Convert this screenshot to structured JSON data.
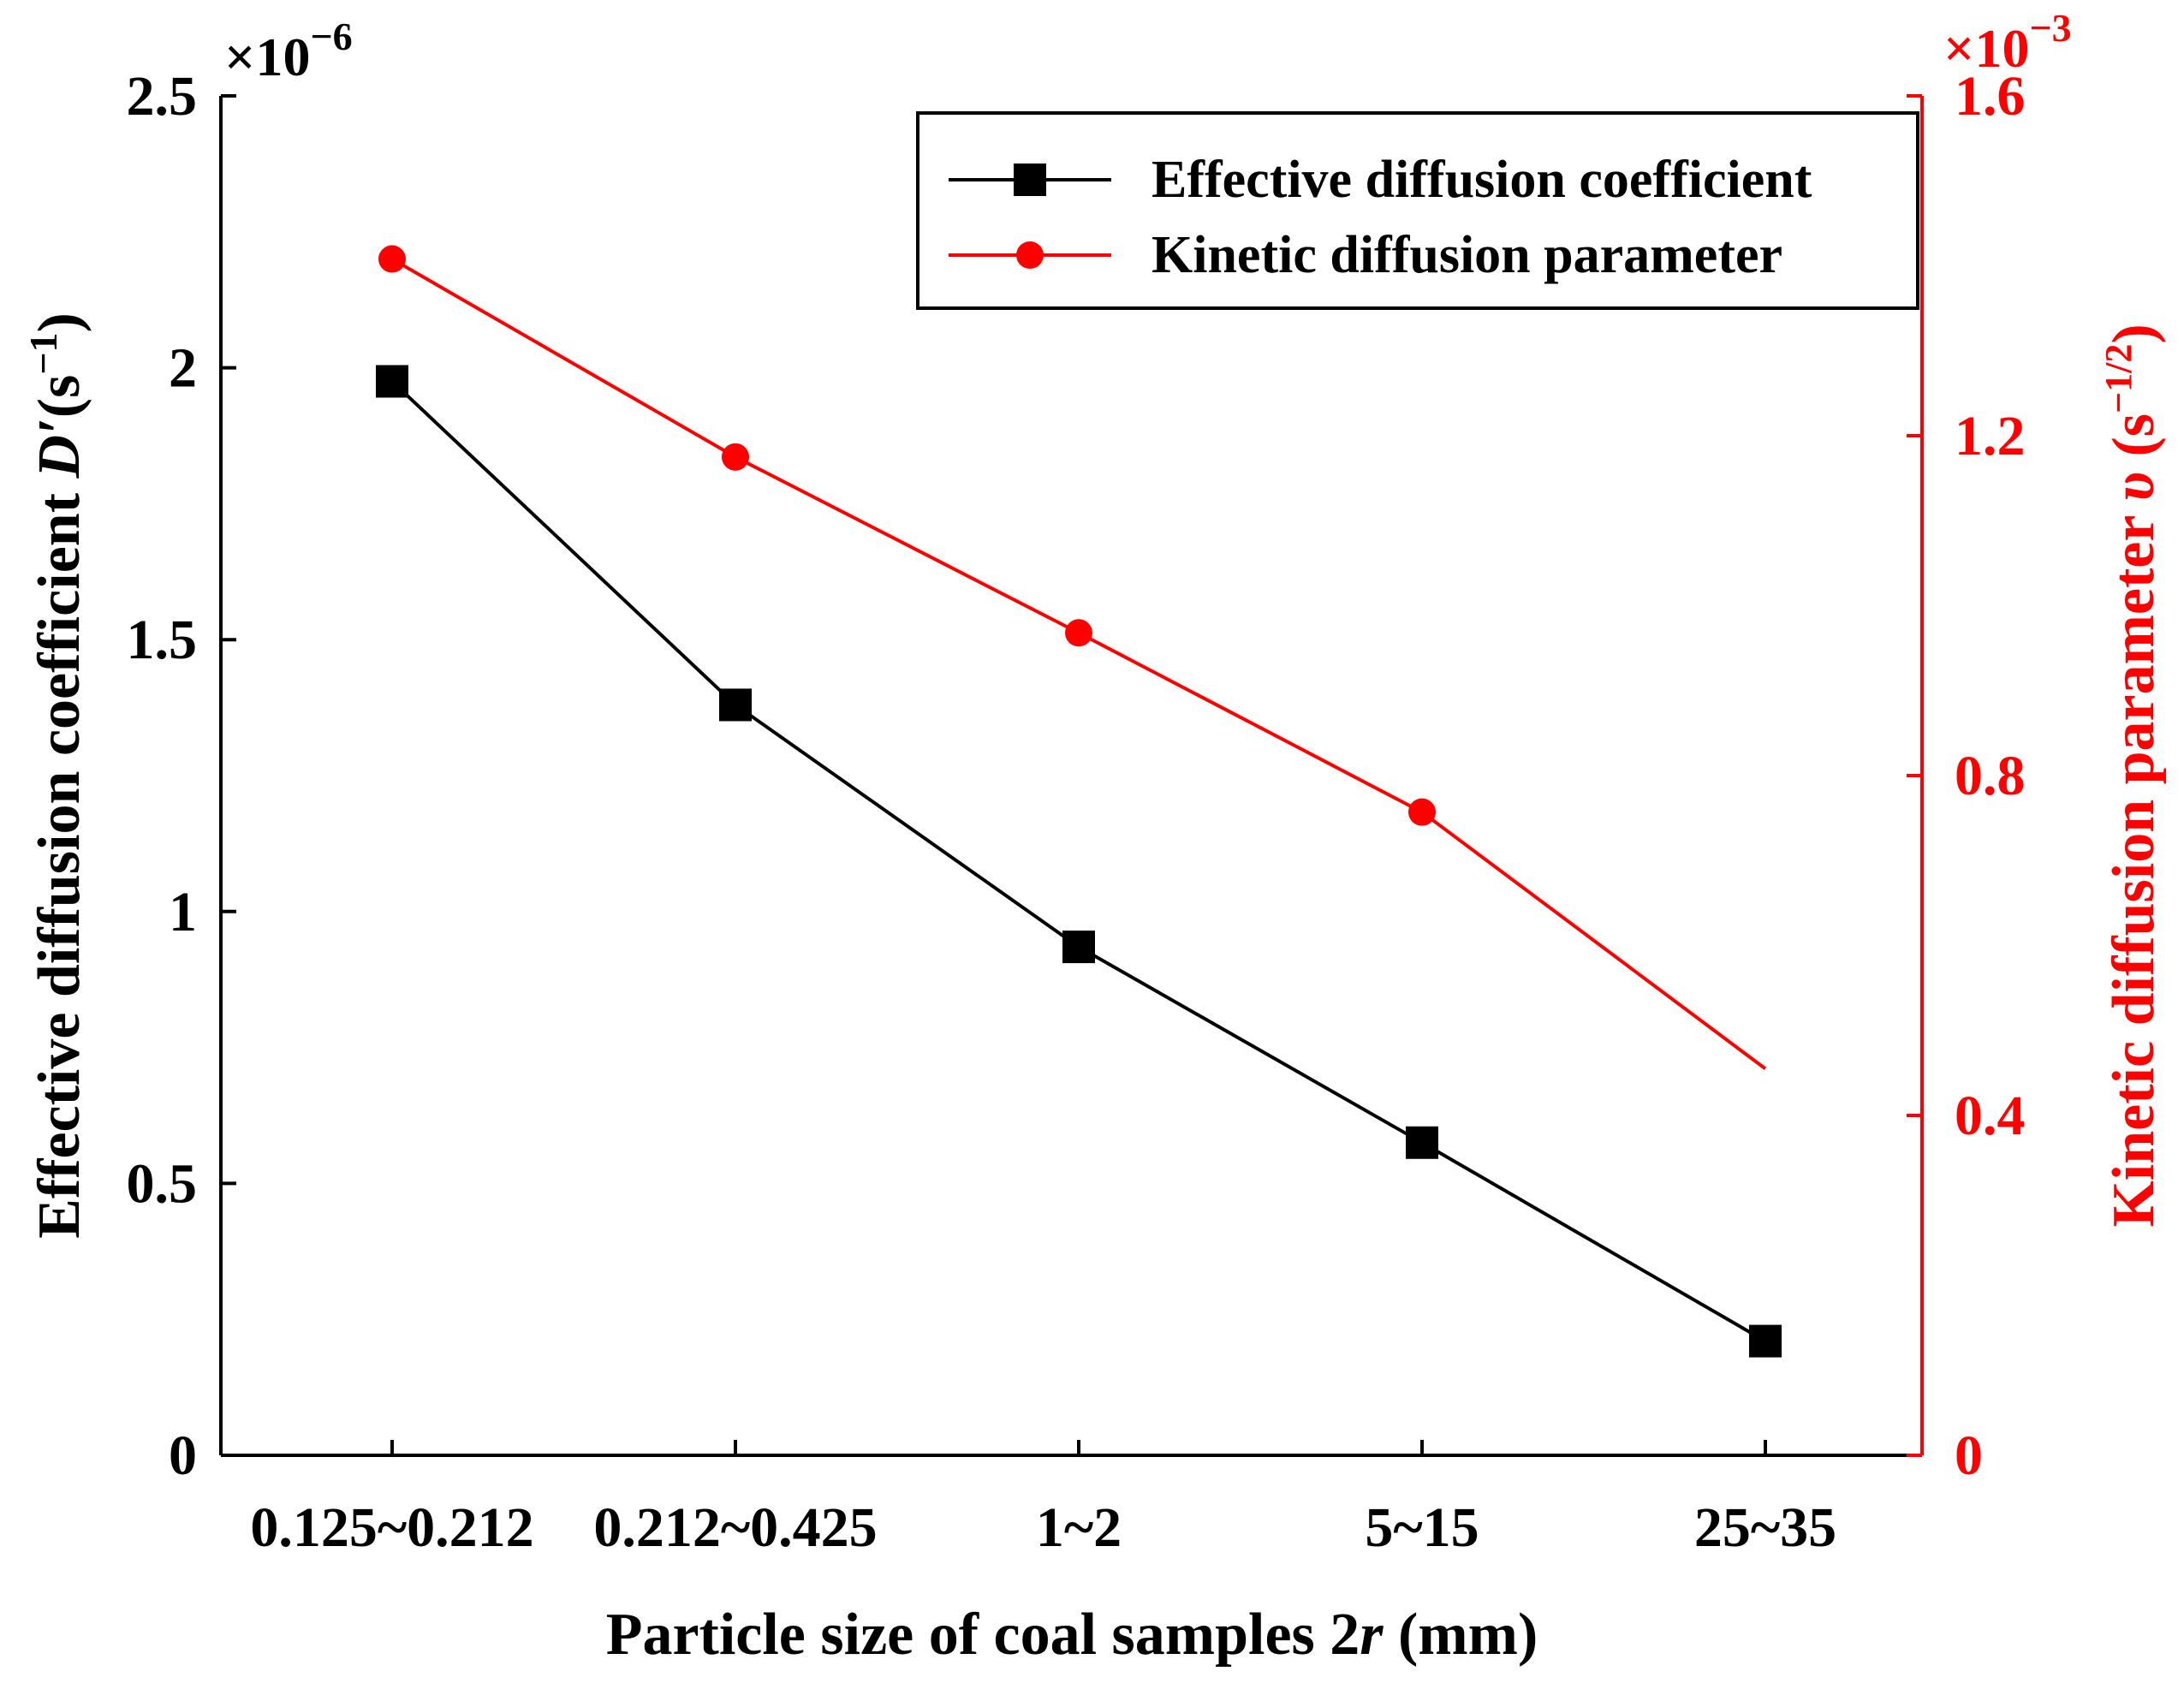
{
  "chart_data": {
    "type": "line",
    "xlabel_prefix": "Particle size of coal samples 2",
    "xlabel_var": "r",
    "xlabel_suffix": " (mm)",
    "categories": [
      "0.125~0.212",
      "0.212~0.425",
      "1~2",
      "5~15",
      "25~35"
    ],
    "y_left": {
      "label_prefix": "Effective diffusion coefficient ",
      "label_var": "D′",
      "label_unit_base": "(s",
      "label_unit_exp": "−1",
      "label_unit_close": ")",
      "ylim": [
        0,
        2.5
      ],
      "ticks": [
        0,
        0.5,
        1,
        1.5,
        2,
        2.5
      ],
      "tick_labels": [
        "0",
        "0.5",
        "1",
        "1.5",
        "2",
        "2.5"
      ],
      "multiplier_base": "×10",
      "multiplier_exp": "−6",
      "color": "#000000"
    },
    "y_right": {
      "label_prefix": "Kinetic diffusion parameter ",
      "label_var": "υ",
      "label_unit_base": " (s",
      "label_unit_exp": "−1/2",
      "label_unit_close": ")",
      "ylim": [
        0,
        1.6
      ],
      "ticks": [
        0,
        0.4,
        0.8,
        1.2,
        1.6
      ],
      "tick_labels": [
        "0",
        "0.4",
        "0.8",
        "1.2",
        "1.6"
      ],
      "multiplier_base": "×10",
      "multiplier_exp": "−3",
      "color": "#ff0000"
    },
    "series": [
      {
        "name": "Effective diffusion coefficient",
        "axis": "left",
        "marker": "square",
        "color": "#000000",
        "values": [
          1.975,
          1.38,
          0.935,
          0.575,
          0.21
        ]
      },
      {
        "name": "Kinetic diffusion parameter",
        "axis": "right",
        "marker": "circle",
        "color": "#ff0000",
        "values": [
          1.408,
          1.175,
          0.968,
          0.757,
          0.455
        ],
        "marker_shown": [
          true,
          true,
          true,
          true,
          false
        ]
      }
    ],
    "legend_position": "top-right"
  }
}
